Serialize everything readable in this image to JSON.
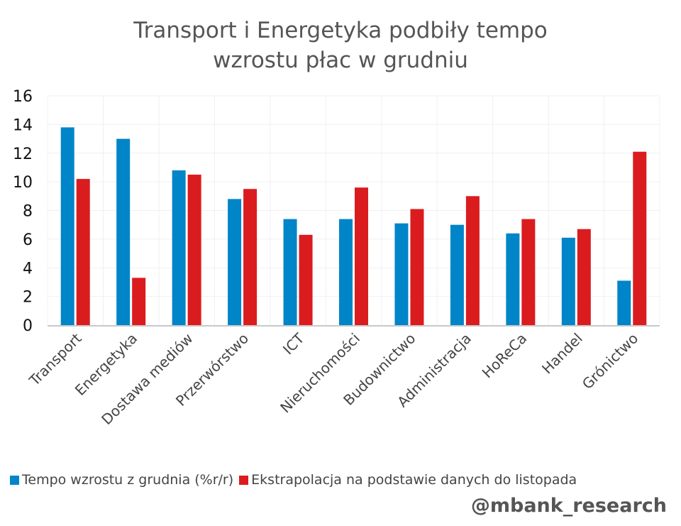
{
  "chart_data": {
    "type": "bar",
    "title": [
      "Transport i Energetyka podbiły tempo",
      "wzrostu płac w grudniu"
    ],
    "xlabel": "",
    "ylabel": "",
    "ylim": [
      0,
      16
    ],
    "yticks": [
      0,
      2,
      4,
      6,
      8,
      10,
      12,
      14,
      16
    ],
    "grid": true,
    "legend_position": "bottom",
    "categories": [
      "Transport",
      "Energetyka",
      "Dostawa mediów",
      "Przerwórstwo",
      "ICT",
      "Nieruchomości",
      "Budownictwo",
      "Administracja",
      "HoReCa",
      "Handel",
      "Grónictwo"
    ],
    "series": [
      {
        "name": "Tempo wzrostu z grudnia (%r/r)",
        "color": "#0085C8",
        "values": [
          13.8,
          13.0,
          10.8,
          8.8,
          7.4,
          7.4,
          7.1,
          7.0,
          6.4,
          6.1,
          3.1
        ]
      },
      {
        "name": "Ekstrapolacja na podstawie danych do listopada",
        "color": "#DA1C1F",
        "values": [
          10.2,
          3.3,
          10.5,
          9.5,
          6.3,
          9.6,
          8.1,
          9.0,
          7.4,
          6.7,
          12.1
        ]
      }
    ]
  },
  "watermark": "@mbank_research",
  "colors": {
    "title": "#555555",
    "grid": "#F0F0F0",
    "axis": "#C8C8C8",
    "tick_text": "#111111",
    "category_text": "#444444"
  }
}
